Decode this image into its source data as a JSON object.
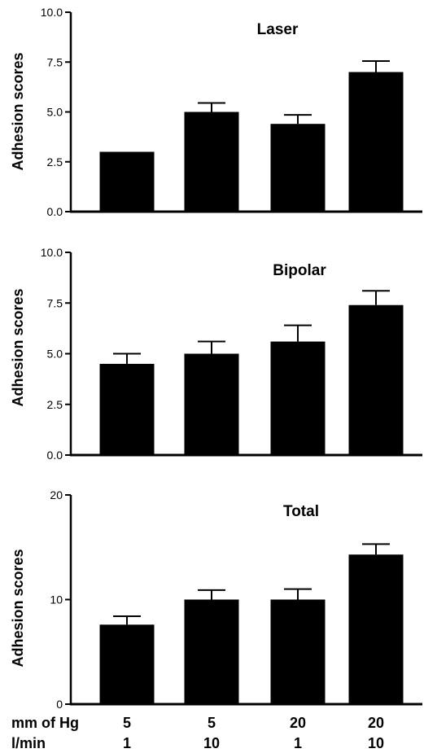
{
  "chart_data": [
    {
      "type": "bar",
      "title": "Laser",
      "ylabel": "Adhesion scores",
      "ylim": [
        0,
        10
      ],
      "yticks": [
        "0.0",
        "2.5",
        "5.0",
        "7.5",
        "10.0"
      ],
      "categories": [
        "5 / 1",
        "5 / 10",
        "20 / 1",
        "20 / 10"
      ],
      "values": [
        3.0,
        5.0,
        4.4,
        7.0
      ],
      "errors": [
        0.0,
        0.45,
        0.45,
        0.55
      ]
    },
    {
      "type": "bar",
      "title": "Bipolar",
      "ylabel": "Adhesion scores",
      "ylim": [
        0,
        10
      ],
      "yticks": [
        "0.0",
        "2.5",
        "5.0",
        "7.5",
        "10.0"
      ],
      "categories": [
        "5 / 1",
        "5 / 10",
        "20 / 1",
        "20 / 10"
      ],
      "values": [
        4.5,
        5.0,
        5.6,
        7.4
      ],
      "errors": [
        0.5,
        0.6,
        0.8,
        0.7
      ]
    },
    {
      "type": "bar",
      "title": "Total",
      "ylabel": "Adhesion scores",
      "ylim": [
        0,
        20
      ],
      "yticks": [
        "0",
        "10",
        "20"
      ],
      "categories": [
        "5 / 1",
        "5 / 10",
        "20 / 1",
        "20 / 10"
      ],
      "values": [
        7.6,
        10.0,
        10.0,
        14.3
      ],
      "errors": [
        0.8,
        0.9,
        1.0,
        1.0
      ]
    }
  ],
  "x_axis": {
    "row1_label": "mm  of Hg",
    "row2_label": "l/min",
    "row1_values": [
      "5",
      "5",
      "20",
      "20"
    ],
    "row2_values": [
      "1",
      "10",
      "1",
      "10"
    ]
  }
}
